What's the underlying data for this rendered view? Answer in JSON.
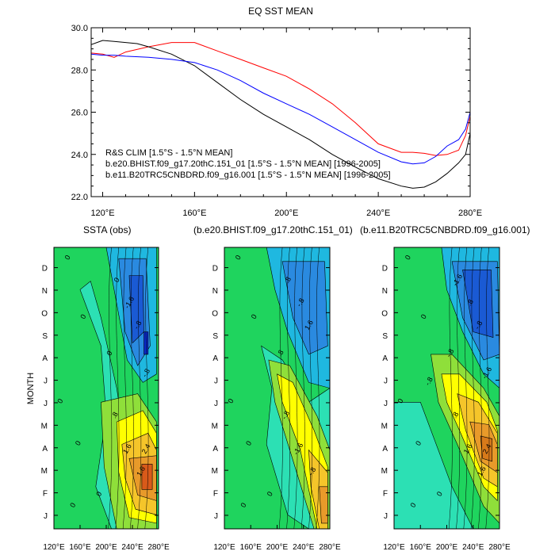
{
  "chart_data": [
    {
      "type": "line",
      "title": "EQ SST MEAN",
      "xlabel": "",
      "ylabel": "",
      "xlim": [
        115,
        280
      ],
      "ylim": [
        22.0,
        30.0
      ],
      "x_ticks": [
        120,
        160,
        200,
        240,
        280
      ],
      "x_tick_labels": [
        "120°E",
        "160°E",
        "200°E",
        "240°E",
        "280°E"
      ],
      "y_ticks": [
        22,
        24,
        26,
        28,
        30
      ],
      "y_tick_labels": [
        "22.0",
        "24.0",
        "26.0",
        "28.0",
        "30.0"
      ],
      "legend_position": "bottom-left",
      "series": [
        {
          "name": "R&S CLIM [1.5°S - 1.5°N MEAN]",
          "color": "#ff0000",
          "x": [
            115,
            120,
            125,
            130,
            140,
            150,
            160,
            170,
            180,
            190,
            200,
            210,
            220,
            230,
            240,
            250,
            255,
            260,
            265,
            270,
            275,
            278,
            280
          ],
          "y": [
            28.8,
            28.75,
            28.6,
            28.85,
            29.1,
            29.3,
            29.3,
            28.9,
            28.5,
            28.1,
            27.7,
            27.1,
            26.4,
            25.5,
            24.5,
            24.1,
            24.1,
            24.05,
            23.95,
            24.0,
            24.2,
            24.9,
            25.8
          ]
        },
        {
          "name": "b.e20.BHIST.f09_g17.20thC.151_01 [1.5°S - 1.5°N MEAN] [1996-2005]",
          "color": "#000000",
          "x": [
            115,
            120,
            125,
            130,
            135,
            140,
            150,
            160,
            170,
            180,
            190,
            200,
            210,
            220,
            230,
            240,
            250,
            255,
            260,
            265,
            270,
            275,
            278,
            280
          ],
          "y": [
            29.2,
            29.4,
            29.35,
            29.3,
            29.25,
            29.1,
            28.75,
            28.2,
            27.4,
            26.6,
            25.9,
            25.3,
            24.7,
            24.0,
            23.4,
            22.85,
            22.5,
            22.4,
            22.45,
            22.7,
            23.1,
            23.6,
            24.0,
            25.0
          ]
        },
        {
          "name": "b.e11.B20TRC5CNBDRD.f09_g16.001 [1.5°S - 1.5°N MEAN] [1996-2005]",
          "color": "#0000ff",
          "x": [
            115,
            120,
            125,
            130,
            140,
            150,
            160,
            170,
            180,
            190,
            200,
            210,
            220,
            230,
            240,
            250,
            255,
            260,
            265,
            270,
            275,
            278,
            280
          ],
          "y": [
            28.75,
            28.7,
            28.7,
            28.65,
            28.6,
            28.5,
            28.35,
            28.0,
            27.5,
            26.9,
            26.4,
            25.9,
            25.3,
            24.7,
            24.1,
            23.65,
            23.55,
            23.6,
            23.9,
            24.4,
            24.7,
            25.2,
            26.0
          ]
        }
      ]
    },
    {
      "type": "heatmap",
      "subtype": "hovmoller-filled-contour",
      "title": "SSTA (obs)",
      "xlabel": "",
      "ylabel": "MONTH",
      "x_tick_labels": [
        "120°E",
        "160°E",
        "200°E",
        "240°E",
        "280°E"
      ],
      "y_tick_labels": [
        "J",
        "F",
        "M",
        "A",
        "M",
        "J",
        "J",
        "A",
        "S",
        "O",
        "N",
        "D"
      ],
      "contour_labels": [
        "0",
        "0",
        "0",
        "0",
        "0",
        "0",
        "0",
        "0",
        "-.8",
        "-1.6",
        ".8",
        "1.6",
        "1.6",
        "2.4",
        "-.8"
      ],
      "features": {
        "positive_peak": {
          "lon": 268,
          "month": "A-M",
          "value": 2.4
        },
        "negative_peak": {
          "lon": 262,
          "month": "S-O",
          "value": -1.6
        }
      }
    },
    {
      "type": "heatmap",
      "subtype": "hovmoller-filled-contour",
      "title": "(b.e20.BHIST.f09_g17.20thC.151_01)",
      "xlabel": "",
      "ylabel": "",
      "x_tick_labels": [
        "120°E",
        "160°E",
        "200°E",
        "240°E",
        "280°E"
      ],
      "y_tick_labels": [
        "J",
        "F",
        "M",
        "A",
        "M",
        "J",
        "J",
        "A",
        "S",
        "O",
        "N",
        "D"
      ],
      "contour_labels": [
        "0",
        "0",
        "0",
        "0",
        "0",
        "0",
        ".8",
        ".8",
        "1.6",
        "-.8",
        "-.8",
        "-1.6",
        "-.8"
      ],
      "features": {
        "positive_peak": {
          "lon": 275,
          "month": "F-M",
          "value": 1.6
        },
        "negative_peak": {
          "lon": 260,
          "month": "S-O",
          "value": -1.6
        }
      }
    },
    {
      "type": "heatmap",
      "subtype": "hovmoller-filled-contour",
      "title": "(b.e11.B20TRC5CNBDRD.f09_g16.001)",
      "xlabel": "",
      "ylabel": "",
      "x_tick_labels": [
        "120°E",
        "160°E",
        "200°E",
        "240°E",
        "280°E"
      ],
      "y_tick_labels": [
        "J",
        "F",
        "M",
        "A",
        "M",
        "J",
        "J",
        "A",
        "S",
        "O",
        "N",
        "D"
      ],
      "contour_labels": [
        "0",
        "0",
        "0",
        "0",
        "0",
        "0",
        "-.8",
        "-1.6",
        "-.8",
        ".8",
        ".8",
        "1.6",
        "1.6",
        "2.4",
        "-1.6",
        "-.8"
      ],
      "features": {
        "positive_peak": {
          "lon": 262,
          "month": "A",
          "value": 2.4
        },
        "negative_peak": {
          "lon": 262,
          "month": "S-O",
          "value": -1.6
        }
      }
    }
  ]
}
